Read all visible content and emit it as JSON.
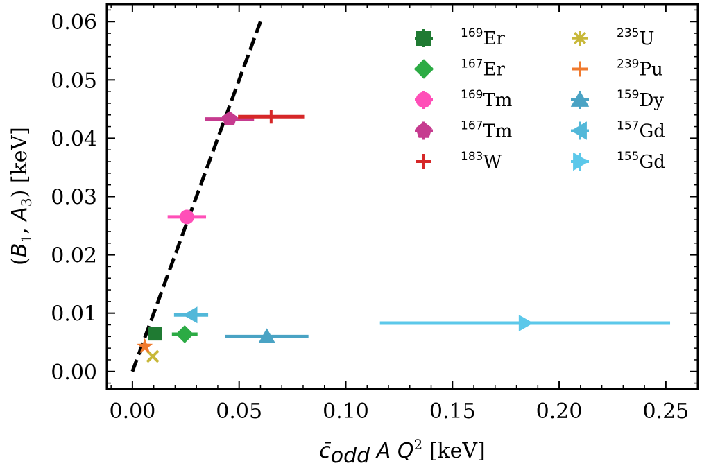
{
  "chart_data": {
    "type": "scatter",
    "xlabel": "c̄odd A Q² [keV]",
    "ylabel": "(B1, A3) [keV]",
    "xlim": [
      -0.012,
      0.265
    ],
    "ylim": [
      -0.003,
      0.063
    ],
    "x_ticks": [
      "0.00",
      "0.05",
      "0.10",
      "0.15",
      "0.20",
      "0.25"
    ],
    "x_tick_values": [
      0.0,
      0.05,
      0.1,
      0.15,
      0.2,
      0.25
    ],
    "y_ticks": [
      "0.00",
      "0.01",
      "0.02",
      "0.03",
      "0.04",
      "0.05",
      "0.06"
    ],
    "y_tick_values": [
      0.0,
      0.01,
      0.02,
      0.03,
      0.04,
      0.05,
      0.06
    ],
    "grid": false,
    "legend_position": "top-right",
    "legend_columns": 2,
    "fit_line": {
      "style": "dashed",
      "color": "#000000",
      "x": [
        0.0,
        0.06
      ],
      "y": [
        0.0,
        0.06
      ]
    },
    "series": [
      {
        "name": "Er",
        "mass": "169",
        "marker": "square",
        "color": "#1f7a32",
        "x": 0.0105,
        "y": 0.0065,
        "xerr": 0.003
      },
      {
        "name": "Er",
        "mass": "167",
        "marker": "diamond",
        "color": "#2cab44",
        "x": 0.0245,
        "y": 0.0064,
        "xerr": 0.006
      },
      {
        "name": "Tm",
        "mass": "169",
        "marker": "circle",
        "color": "#ff4fb8",
        "x": 0.0255,
        "y": 0.0265,
        "xerr": 0.009
      },
      {
        "name": "Tm",
        "mass": "167",
        "marker": "pentagon",
        "color": "#c63b8f",
        "x": 0.0455,
        "y": 0.0433,
        "xerr": 0.0115
      },
      {
        "name": "W",
        "mass": "183",
        "marker": "plus",
        "color": "#d62728",
        "x": 0.065,
        "y": 0.0437,
        "xerr": 0.0155
      },
      {
        "name": "U",
        "mass": "235",
        "marker": "x",
        "color": "#c8b83a",
        "x": 0.0095,
        "y": 0.0026,
        "xerr": 0
      },
      {
        "name": "Pu",
        "mass": "239",
        "marker": "star",
        "color": "#f07a2e",
        "x": 0.0058,
        "y": 0.0043,
        "xerr": 0
      },
      {
        "name": "Dy",
        "mass": "159",
        "marker": "triangle-up",
        "color": "#4aa3c4",
        "x": 0.063,
        "y": 0.006,
        "xerr": 0.0195
      },
      {
        "name": "Gd",
        "mass": "157",
        "marker": "triangle-left",
        "color": "#52b8d9",
        "x": 0.0275,
        "y": 0.0097,
        "xerr": 0.008
      },
      {
        "name": "Gd",
        "mass": "155",
        "marker": "triangle-right",
        "color": "#5cc8ea",
        "x": 0.184,
        "y": 0.0083,
        "xerr": 0.068
      }
    ]
  }
}
